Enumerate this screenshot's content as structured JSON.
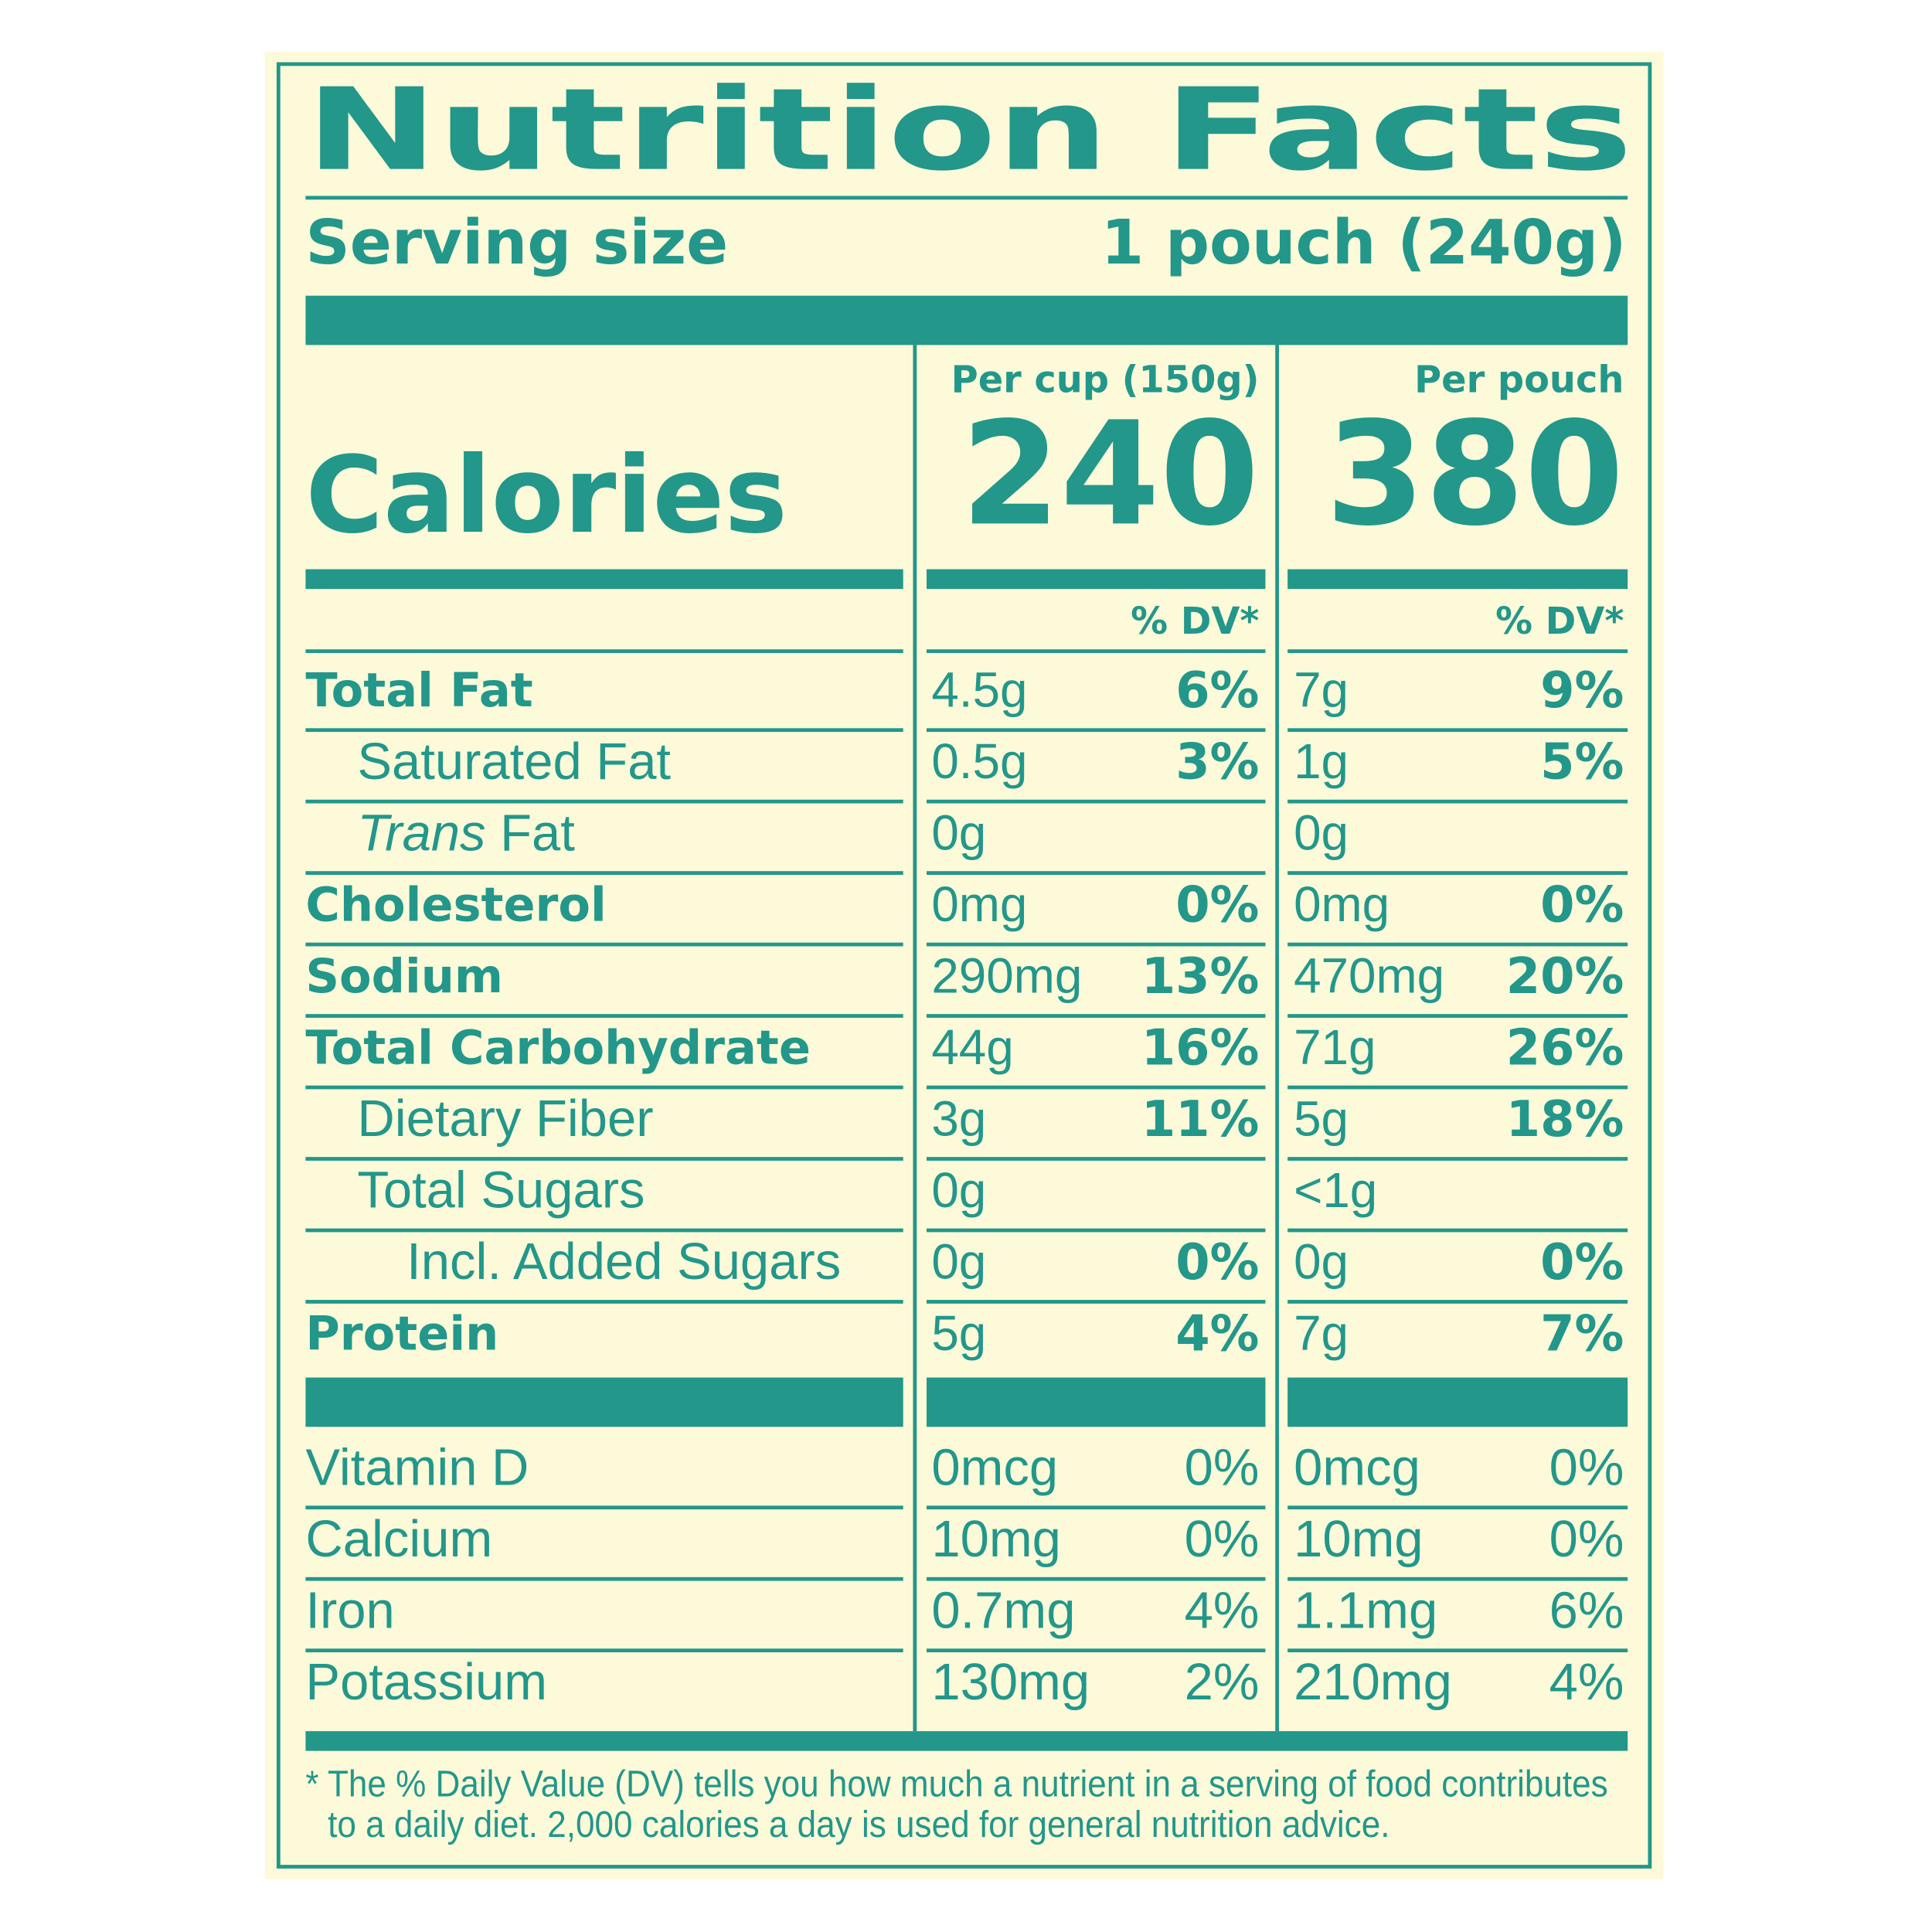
{
  "header": {
    "title": "Nutrition Facts",
    "serving_label": "Serving size",
    "serving_value": "1 pouch (240g)"
  },
  "calories_label": "Calories",
  "columns": [
    {
      "heading": "Per cup (150g)",
      "calories": "240",
      "dv_header": "% DV*"
    },
    {
      "heading": "Per pouch",
      "calories": "380",
      "dv_header": "% DV*"
    }
  ],
  "nutrients": [
    {
      "name": "Total Fat",
      "values": [
        [
          "4.5g",
          "6%"
        ],
        [
          "7g",
          "9%"
        ]
      ]
    },
    {
      "name": "Saturated Fat",
      "values": [
        [
          "0.5g",
          "3%"
        ],
        [
          "1g",
          "5%"
        ]
      ]
    },
    {
      "name_italic": "Trans",
      "name": "Fat",
      "values": [
        [
          "0g"
        ],
        [
          "0g"
        ]
      ]
    },
    {
      "name": "Cholesterol",
      "values": [
        [
          "0mg",
          "0%"
        ],
        [
          "0mg",
          "0%"
        ]
      ]
    },
    {
      "name": "Sodium",
      "values": [
        [
          "290mg",
          "13%"
        ],
        [
          "470mg",
          "20%"
        ]
      ]
    },
    {
      "name": "Total Carbohydrate",
      "values": [
        [
          "44g",
          "16%"
        ],
        [
          "71g",
          "26%"
        ]
      ]
    },
    {
      "name": "Dietary Fiber",
      "values": [
        [
          "3g",
          "11%"
        ],
        [
          "5g",
          "18%"
        ]
      ]
    },
    {
      "name": "Total Sugars",
      "values": [
        [
          "0g"
        ],
        [
          "<1g"
        ]
      ]
    },
    {
      "name": "Incl. Added Sugars",
      "values": [
        [
          "0g",
          "0%"
        ],
        [
          "0g",
          "0%"
        ]
      ]
    },
    {
      "name": "Protein",
      "values": [
        [
          "5g",
          "4%"
        ],
        [
          "7g",
          "7%"
        ]
      ]
    }
  ],
  "vitamins": [
    {
      "name": "Vitamin D",
      "values": [
        [
          "0mcg",
          "0%"
        ],
        [
          "0mcg",
          "0%"
        ]
      ]
    },
    {
      "name": "Calcium",
      "values": [
        [
          "10mg",
          "0%"
        ],
        [
          "10mg",
          "0%"
        ]
      ]
    },
    {
      "name": "Iron",
      "values": [
        [
          "0.7mg",
          "4%"
        ],
        [
          "1.1mg",
          "6%"
        ]
      ]
    },
    {
      "name": "Potassium",
      "values": [
        [
          "130mg",
          "2%"
        ],
        [
          "210mg",
          "4%"
        ]
      ]
    }
  ],
  "footnote": [
    "* The % Daily Value (DV) tells you how much a nutrient in a serving of food contributes",
    "to a daily diet. 2,000 calories a day is used for general nutrition advice."
  ]
}
